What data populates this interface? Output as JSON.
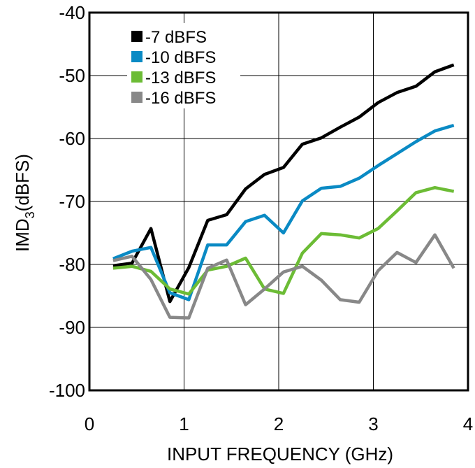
{
  "chart_data": {
    "type": "line",
    "xlabel": "INPUT FREQUENCY (GHz)",
    "ylabel": {
      "main": "IMD",
      "sub": "3",
      "rest": "(dBFS)"
    },
    "xlim": [
      0,
      4
    ],
    "ylim": [
      -100,
      -40
    ],
    "xticks": [
      0,
      1,
      2,
      3,
      4
    ],
    "yticks": [
      -40,
      -50,
      -60,
      -70,
      -80,
      -90,
      -100
    ],
    "grid": true,
    "legend_position": "top-left",
    "x": [
      0.25,
      0.45,
      0.65,
      0.85,
      1.05,
      1.25,
      1.45,
      1.65,
      1.85,
      2.05,
      2.25,
      2.45,
      2.65,
      2.85,
      3.05,
      3.25,
      3.45,
      3.65,
      3.85
    ],
    "series": [
      {
        "name": "-7 dBFS",
        "color": "#000000",
        "values": [
          -80.2,
          -79.8,
          -74.3,
          -85.9,
          -80.5,
          -73.0,
          -72.1,
          -68.0,
          -65.7,
          -64.6,
          -60.9,
          -59.9,
          -58.2,
          -56.6,
          -54.3,
          -52.7,
          -51.7,
          -49.4,
          -48.3
        ]
      },
      {
        "name": "-10 dBFS",
        "color": "#0a8ac4",
        "values": [
          -79.1,
          -77.9,
          -77.3,
          -84.5,
          -85.6,
          -76.9,
          -76.9,
          -73.2,
          -72.2,
          -75.0,
          -69.9,
          -67.9,
          -67.6,
          -66.3,
          -64.3,
          -62.4,
          -60.5,
          -58.8,
          -57.9
        ]
      },
      {
        "name": "-13 dBFS",
        "color": "#6cbc35",
        "values": [
          -80.6,
          -80.3,
          -81.1,
          -83.9,
          -84.7,
          -80.9,
          -80.3,
          -79.0,
          -83.9,
          -84.6,
          -78.2,
          -75.1,
          -75.3,
          -75.8,
          -74.3,
          -71.5,
          -68.6,
          -67.8,
          -68.4
        ]
      },
      {
        "name": "-16 dBFS",
        "color": "#888888",
        "values": [
          -79.4,
          -78.7,
          -82.4,
          -88.4,
          -88.5,
          -80.6,
          -79.3,
          -86.4,
          -83.9,
          -81.2,
          -80.3,
          -82.5,
          -85.6,
          -86.0,
          -81.0,
          -78.1,
          -79.7,
          -75.3,
          -80.6
        ]
      }
    ]
  }
}
